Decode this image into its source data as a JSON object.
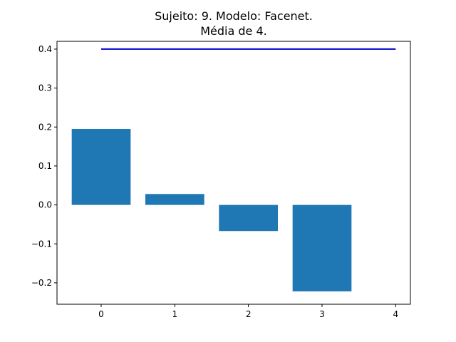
{
  "chart_data": {
    "type": "bar",
    "title_lines": [
      "Sujeito: 9. Modelo: Facenet.",
      "Média de 4."
    ],
    "categories": [
      "0",
      "1",
      "2",
      "3"
    ],
    "x": [
      0,
      1,
      2,
      3
    ],
    "values": [
      0.195,
      0.028,
      -0.067,
      -0.222
    ],
    "bar_color": "#1f77b4",
    "reference_line": {
      "value": 0.4,
      "x_range": [
        0,
        4
      ],
      "color": "#0000cd"
    },
    "xlim": [
      -0.6,
      4.2
    ],
    "ylim": [
      -0.255,
      0.42
    ],
    "x_ticks": [
      0,
      1,
      2,
      3,
      4
    ],
    "x_tick_labels": [
      "0",
      "1",
      "2",
      "3",
      "4"
    ],
    "y_ticks": [
      -0.2,
      -0.1,
      0.0,
      0.1,
      0.2,
      0.3,
      0.4
    ],
    "y_tick_labels": [
      "−0.2",
      "−0.1",
      "0.0",
      "0.1",
      "0.2",
      "0.3",
      "0.4"
    ],
    "xlabel": "",
    "ylabel": "",
    "grid": false,
    "legend": "none"
  }
}
